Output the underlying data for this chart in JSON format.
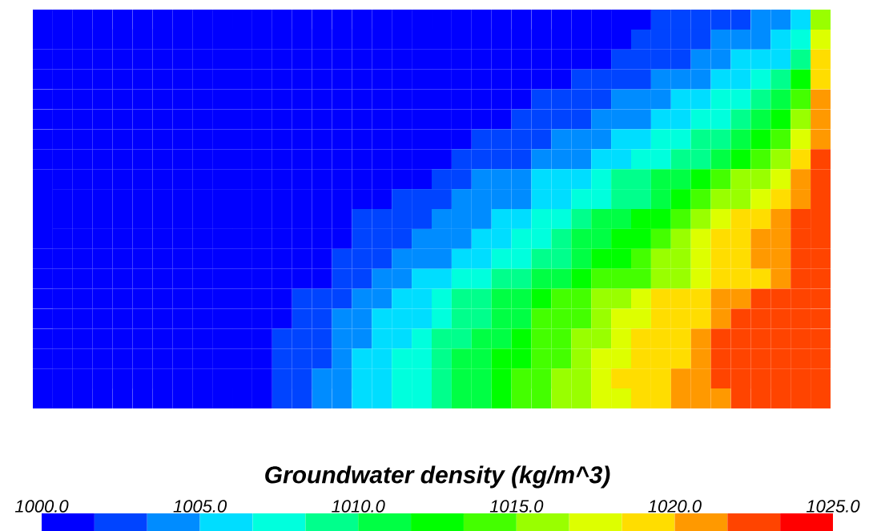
{
  "chart_data": {
    "type": "heatmap",
    "clabel": "Groundwater density (kg/m^3)",
    "categories": [
      null,
      null,
      null,
      null,
      null,
      null,
      null,
      null,
      null,
      null,
      null,
      null,
      null,
      null,
      null,
      null,
      null,
      null,
      null,
      null,
      null,
      null,
      null,
      null,
      null,
      null,
      null,
      null,
      null,
      null,
      null,
      null,
      null,
      null,
      null,
      null,
      null,
      null,
      null,
      null
    ],
    "y_categories": [
      null,
      null,
      null,
      null,
      null,
      null,
      null,
      null,
      null,
      null,
      null,
      null,
      null,
      null,
      null,
      null,
      null,
      null,
      null,
      null
    ],
    "clim": [
      1000,
      1025
    ],
    "cticks": [
      {
        "value": 1000,
        "label": "1000.0"
      },
      {
        "value": 1005,
        "label": "1005.0"
      },
      {
        "value": 1010,
        "label": "1010.0"
      },
      {
        "value": 1015,
        "label": "1015.0"
      },
      {
        "value": 1020,
        "label": "1020.0"
      },
      {
        "value": 1025,
        "label": "1025.0"
      }
    ],
    "cells": [
      [
        1000.8,
        1000.8,
        1000.8,
        1000.8,
        1000.8,
        1000.8,
        1000.8,
        1000.8,
        1000.8,
        1000.8,
        1000.8,
        1000.8,
        1000.8,
        1000.8,
        1000.8,
        1000.8,
        1000.8,
        1000.8,
        1000.8,
        1000.8,
        1000.8,
        1000.8,
        1000.8,
        1000.8,
        1000.8,
        1000.8,
        1000.8,
        1000.8,
        1000.8,
        1000.8,
        1000.8,
        1002.5,
        1002.5,
        1002.5,
        1002.5,
        1002.5,
        1004.2,
        1004.2,
        1005.8,
        1015.8
      ],
      [
        1000.8,
        1000.8,
        1000.8,
        1000.8,
        1000.8,
        1000.8,
        1000.8,
        1000.8,
        1000.8,
        1000.8,
        1000.8,
        1000.8,
        1000.8,
        1000.8,
        1000.8,
        1000.8,
        1000.8,
        1000.8,
        1000.8,
        1000.8,
        1000.8,
        1000.8,
        1000.8,
        1000.8,
        1000.8,
        1000.8,
        1000.8,
        1000.8,
        1000.8,
        1000.8,
        1002.5,
        1002.5,
        1002.5,
        1002.5,
        1004.2,
        1004.2,
        1004.2,
        1005.8,
        1007.5,
        1017.5
      ],
      [
        1000.8,
        1000.8,
        1000.8,
        1000.8,
        1000.8,
        1000.8,
        1000.8,
        1000.8,
        1000.8,
        1000.8,
        1000.8,
        1000.8,
        1000.8,
        1000.8,
        1000.8,
        1000.8,
        1000.8,
        1000.8,
        1000.8,
        1000.8,
        1000.8,
        1000.8,
        1000.8,
        1000.8,
        1000.8,
        1000.8,
        1000.8,
        1000.8,
        1000.8,
        1002.5,
        1002.5,
        1002.5,
        1002.5,
        1004.2,
        1004.2,
        1005.8,
        1005.8,
        1005.8,
        1009.2,
        1019.2
      ],
      [
        1000.8,
        1000.8,
        1000.8,
        1000.8,
        1000.8,
        1000.8,
        1000.8,
        1000.8,
        1000.8,
        1000.8,
        1000.8,
        1000.8,
        1000.8,
        1000.8,
        1000.8,
        1000.8,
        1000.8,
        1000.8,
        1000.8,
        1000.8,
        1000.8,
        1000.8,
        1000.8,
        1000.8,
        1000.8,
        1000.8,
        1000.8,
        1002.5,
        1002.5,
        1002.5,
        1002.5,
        1004.2,
        1004.2,
        1004.2,
        1005.8,
        1005.8,
        1007.5,
        1009.2,
        1012.5,
        1019.2
      ],
      [
        1000.8,
        1000.8,
        1000.8,
        1000.8,
        1000.8,
        1000.8,
        1000.8,
        1000.8,
        1000.8,
        1000.8,
        1000.8,
        1000.8,
        1000.8,
        1000.8,
        1000.8,
        1000.8,
        1000.8,
        1000.8,
        1000.8,
        1000.8,
        1000.8,
        1000.8,
        1000.8,
        1000.8,
        1000.8,
        1002.5,
        1002.5,
        1002.5,
        1002.5,
        1004.2,
        1004.2,
        1004.2,
        1005.8,
        1005.8,
        1007.5,
        1007.5,
        1009.2,
        1010.8,
        1014.2,
        1020.8
      ],
      [
        1000.8,
        1000.8,
        1000.8,
        1000.8,
        1000.8,
        1000.8,
        1000.8,
        1000.8,
        1000.8,
        1000.8,
        1000.8,
        1000.8,
        1000.8,
        1000.8,
        1000.8,
        1000.8,
        1000.8,
        1000.8,
        1000.8,
        1000.8,
        1000.8,
        1000.8,
        1000.8,
        1000.8,
        1002.5,
        1002.5,
        1002.5,
        1002.5,
        1004.2,
        1004.2,
        1004.2,
        1005.8,
        1005.8,
        1007.5,
        1007.5,
        1009.2,
        1010.8,
        1012.5,
        1015.8,
        1020.8
      ],
      [
        1000.8,
        1000.8,
        1000.8,
        1000.8,
        1000.8,
        1000.8,
        1000.8,
        1000.8,
        1000.8,
        1000.8,
        1000.8,
        1000.8,
        1000.8,
        1000.8,
        1000.8,
        1000.8,
        1000.8,
        1000.8,
        1000.8,
        1000.8,
        1000.8,
        1000.8,
        1002.5,
        1002.5,
        1002.5,
        1002.5,
        1004.2,
        1004.2,
        1004.2,
        1005.8,
        1005.8,
        1007.5,
        1007.5,
        1009.2,
        1009.2,
        1010.8,
        1012.5,
        1014.2,
        1017.5,
        1020.8
      ],
      [
        1000.8,
        1000.8,
        1000.8,
        1000.8,
        1000.8,
        1000.8,
        1000.8,
        1000.8,
        1000.8,
        1000.8,
        1000.8,
        1000.8,
        1000.8,
        1000.8,
        1000.8,
        1000.8,
        1000.8,
        1000.8,
        1000.8,
        1000.8,
        1000.8,
        1002.5,
        1002.5,
        1002.5,
        1002.5,
        1004.2,
        1004.2,
        1004.2,
        1005.8,
        1005.8,
        1007.5,
        1007.5,
        1009.2,
        1009.2,
        1010.8,
        1012.5,
        1014.2,
        1015.8,
        1019.2,
        1022.5
      ],
      [
        1000.8,
        1000.8,
        1000.8,
        1000.8,
        1000.8,
        1000.8,
        1000.8,
        1000.8,
        1000.8,
        1000.8,
        1000.8,
        1000.8,
        1000.8,
        1000.8,
        1000.8,
        1000.8,
        1000.8,
        1000.8,
        1000.8,
        1000.8,
        1002.5,
        1002.5,
        1004.2,
        1004.2,
        1004.2,
        1005.8,
        1005.8,
        1005.8,
        1007.5,
        1009.2,
        1009.2,
        1010.8,
        1010.8,
        1012.5,
        1014.2,
        1015.8,
        1015.8,
        1017.5,
        1020.8,
        1022.5
      ],
      [
        1000.8,
        1000.8,
        1000.8,
        1000.8,
        1000.8,
        1000.8,
        1000.8,
        1000.8,
        1000.8,
        1000.8,
        1000.8,
        1000.8,
        1000.8,
        1000.8,
        1000.8,
        1000.8,
        1000.8,
        1000.8,
        1002.5,
        1002.5,
        1002.5,
        1004.2,
        1004.2,
        1004.2,
        1004.2,
        1005.8,
        1005.8,
        1007.5,
        1007.5,
        1009.2,
        1009.2,
        1010.8,
        1012.5,
        1014.2,
        1015.8,
        1015.8,
        1017.5,
        1019.2,
        1020.8,
        1022.5
      ],
      [
        1000.8,
        1000.8,
        1000.8,
        1000.8,
        1000.8,
        1000.8,
        1000.8,
        1000.8,
        1000.8,
        1000.8,
        1000.8,
        1000.8,
        1000.8,
        1000.8,
        1000.8,
        1000.8,
        1002.5,
        1002.5,
        1002.5,
        1002.5,
        1004.2,
        1004.2,
        1004.2,
        1005.8,
        1005.8,
        1007.5,
        1007.5,
        1009.2,
        1010.8,
        1010.8,
        1012.5,
        1012.5,
        1014.2,
        1015.8,
        1017.5,
        1019.2,
        1019.2,
        1020.8,
        1022.5,
        1022.5
      ],
      [
        1000.8,
        1000.8,
        1000.8,
        1000.8,
        1000.8,
        1000.8,
        1000.8,
        1000.8,
        1000.8,
        1000.8,
        1000.8,
        1000.8,
        1000.8,
        1000.8,
        1000.8,
        1000.8,
        1002.5,
        1002.5,
        1002.5,
        1004.2,
        1004.2,
        1004.2,
        1005.8,
        1005.8,
        1007.5,
        1007.5,
        1009.2,
        1010.8,
        1010.8,
        1012.5,
        1012.5,
        1014.2,
        1015.8,
        1017.5,
        1019.2,
        1019.2,
        1020.8,
        1020.8,
        1022.5,
        1022.5
      ],
      [
        1000.8,
        1000.8,
        1000.8,
        1000.8,
        1000.8,
        1000.8,
        1000.8,
        1000.8,
        1000.8,
        1000.8,
        1000.8,
        1000.8,
        1000.8,
        1000.8,
        1000.8,
        1002.5,
        1002.5,
        1002.5,
        1004.2,
        1004.2,
        1004.2,
        1005.8,
        1005.8,
        1007.5,
        1007.5,
        1009.2,
        1009.2,
        1010.8,
        1012.5,
        1012.5,
        1014.2,
        1015.8,
        1015.8,
        1017.5,
        1019.2,
        1019.2,
        1020.8,
        1020.8,
        1022.5,
        1022.5
      ],
      [
        1000.8,
        1000.8,
        1000.8,
        1000.8,
        1000.8,
        1000.8,
        1000.8,
        1000.8,
        1000.8,
        1000.8,
        1000.8,
        1000.8,
        1000.8,
        1000.8,
        1000.8,
        1002.5,
        1002.5,
        1004.2,
        1004.2,
        1005.8,
        1005.8,
        1007.5,
        1007.5,
        1009.2,
        1009.2,
        1010.8,
        1010.8,
        1012.5,
        1014.2,
        1014.2,
        1014.2,
        1015.8,
        1015.8,
        1017.5,
        1019.2,
        1019.2,
        1019.2,
        1020.8,
        1022.5,
        1022.5
      ],
      [
        1000.8,
        1000.8,
        1000.8,
        1000.8,
        1000.8,
        1000.8,
        1000.8,
        1000.8,
        1000.8,
        1000.8,
        1000.8,
        1000.8,
        1000.8,
        1002.5,
        1002.5,
        1002.5,
        1004.2,
        1004.2,
        1005.8,
        1005.8,
        1007.5,
        1009.2,
        1009.2,
        1010.8,
        1010.8,
        1012.5,
        1014.2,
        1014.2,
        1015.8,
        1015.8,
        1017.5,
        1019.2,
        1019.2,
        1019.2,
        1020.8,
        1020.8,
        1022.5,
        1022.5,
        1022.5,
        1022.5
      ],
      [
        1000.8,
        1000.8,
        1000.8,
        1000.8,
        1000.8,
        1000.8,
        1000.8,
        1000.8,
        1000.8,
        1000.8,
        1000.8,
        1000.8,
        1000.8,
        1002.5,
        1002.5,
        1004.2,
        1004.2,
        1005.8,
        1005.8,
        1005.8,
        1007.5,
        1009.2,
        1009.2,
        1010.8,
        1010.8,
        1014.2,
        1014.2,
        1014.2,
        1015.8,
        1017.5,
        1017.5,
        1019.2,
        1019.2,
        1019.2,
        1020.8,
        1022.5,
        1022.5,
        1022.5,
        1022.5,
        1022.5
      ],
      [
        1000.8,
        1000.8,
        1000.8,
        1000.8,
        1000.8,
        1000.8,
        1000.8,
        1000.8,
        1000.8,
        1000.8,
        1000.8,
        1000.8,
        1002.5,
        1002.5,
        1002.5,
        1004.2,
        1004.2,
        1005.8,
        1005.8,
        1007.5,
        1009.2,
        1009.2,
        1010.8,
        1010.8,
        1012.5,
        1014.2,
        1014.2,
        1015.8,
        1015.8,
        1017.5,
        1019.2,
        1019.2,
        1019.2,
        1020.8,
        1022.5,
        1022.5,
        1022.5,
        1022.5,
        1022.5,
        1022.5
      ],
      [
        1000.8,
        1000.8,
        1000.8,
        1000.8,
        1000.8,
        1000.8,
        1000.8,
        1000.8,
        1000.8,
        1000.8,
        1000.8,
        1000.8,
        1002.5,
        1002.5,
        1002.5,
        1004.2,
        1005.8,
        1005.8,
        1007.5,
        1007.5,
        1009.2,
        1010.8,
        1010.8,
        1012.5,
        1012.5,
        1014.2,
        1014.2,
        1015.8,
        1017.5,
        1017.5,
        1019.2,
        1019.2,
        1019.2,
        1020.8,
        1022.5,
        1022.5,
        1022.5,
        1022.5,
        1022.5,
        1022.5
      ],
      [
        1000.8,
        1000.8,
        1000.8,
        1000.8,
        1000.8,
        1000.8,
        1000.8,
        1000.8,
        1000.8,
        1000.8,
        1000.8,
        1000.8,
        1002.5,
        1002.5,
        1004.2,
        1004.2,
        1005.8,
        1005.8,
        1007.5,
        1007.5,
        1009.2,
        1010.8,
        1010.8,
        1012.5,
        1014.2,
        1014.2,
        1015.8,
        1015.8,
        1017.5,
        1019.2,
        1019.2,
        1019.2,
        1020.8,
        1020.8,
        1022.5,
        1022.5,
        1022.5,
        1022.5,
        1022.5,
        1022.5
      ],
      [
        1000.8,
        1000.8,
        1000.8,
        1000.8,
        1000.8,
        1000.8,
        1000.8,
        1000.8,
        1000.8,
        1000.8,
        1000.8,
        1000.8,
        1002.5,
        1002.5,
        1004.2,
        1004.2,
        1005.8,
        1005.8,
        1007.5,
        1007.5,
        1009.2,
        1010.8,
        1010.8,
        1012.5,
        1014.2,
        1014.2,
        1015.8,
        1015.8,
        1017.5,
        1017.5,
        1019.2,
        1019.2,
        1020.8,
        1020.8,
        1020.8,
        1022.5,
        1022.5,
        1022.5,
        1022.5,
        1022.5
      ]
    ]
  }
}
